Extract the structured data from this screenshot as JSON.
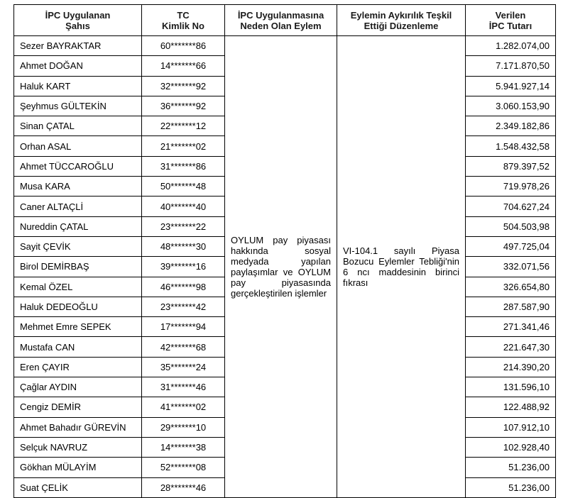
{
  "table": {
    "header": [
      [
        "İPC Uygulanan",
        "Şahıs"
      ],
      [
        "TC",
        "Kimlik No"
      ],
      [
        "İPC Uygulanmasına",
        "Neden Olan Eylem"
      ],
      [
        "Eylemin Aykırılık Teşkil",
        "Ettiği Düzenleme"
      ],
      [
        "Verilen",
        "İPC Tutarı"
      ]
    ],
    "action": "OYLUM pay piyasası hakkında sosyal medyada yapılan paylaşımlar ve OYLUM pay piyasasında gerçekleştirilen işlemler",
    "regulation": "VI-104.1 sayılı Piyasa Bozucu Eylemler Tebliği'nin 6 ncı maddesinin birinci fıkrası",
    "rows": [
      [
        "Sezer BAYRAKTAR",
        "60*******86",
        "1.282.074,00"
      ],
      [
        "Ahmet DOĞAN",
        "14*******66",
        "7.171.870,50"
      ],
      [
        "Haluk KART",
        "32*******92",
        "5.941.927,14"
      ],
      [
        "Şeyhmus GÜLTEKİN",
        "36*******92",
        "3.060.153,90"
      ],
      [
        "Sinan ÇATAL",
        "22*******12",
        "2.349.182,86"
      ],
      [
        "Orhan ASAL",
        "21*******02",
        "1.548.432,58"
      ],
      [
        "Ahmet TÜCCAROĞLU",
        "31*******86",
        "879.397,52"
      ],
      [
        "Musa KARA",
        "50*******48",
        "719.978,26"
      ],
      [
        "Caner ALTAÇLİ",
        "40*******40",
        "704.627,24"
      ],
      [
        "Nureddin ÇATAL",
        "23*******22",
        "504.503,98"
      ],
      [
        "Sayit ÇEVİK",
        "48*******30",
        "497.725,04"
      ],
      [
        "Birol DEMİRBAŞ",
        "39*******16",
        "332.071,56"
      ],
      [
        "Kemal ÖZEL",
        "46*******98",
        "326.654,80"
      ],
      [
        "Haluk DEDEOĞLU",
        "23*******42",
        "287.587,90"
      ],
      [
        "Mehmet Emre SEPEK",
        "17*******94",
        "271.341,46"
      ],
      [
        "Mustafa CAN",
        "42*******68",
        "221.647,30"
      ],
      [
        "Eren ÇAYIR",
        "35*******24",
        "214.390,20"
      ],
      [
        "Çağlar AYDIN",
        "31*******46",
        "131.596,10"
      ],
      [
        "Cengiz DEMİR",
        "41*******02",
        "122.488,92"
      ],
      [
        "Ahmet Bahadır GÜREVİN",
        "29*******10",
        "107.912,10"
      ],
      [
        "Selçuk NAVRUZ",
        "14*******38",
        "102.928,40"
      ],
      [
        "Gökhan MÜLAYİM",
        "52*******08",
        "51.236,00"
      ],
      [
        "Suat ÇELİK",
        "28*******46",
        "51.236,00"
      ]
    ]
  }
}
